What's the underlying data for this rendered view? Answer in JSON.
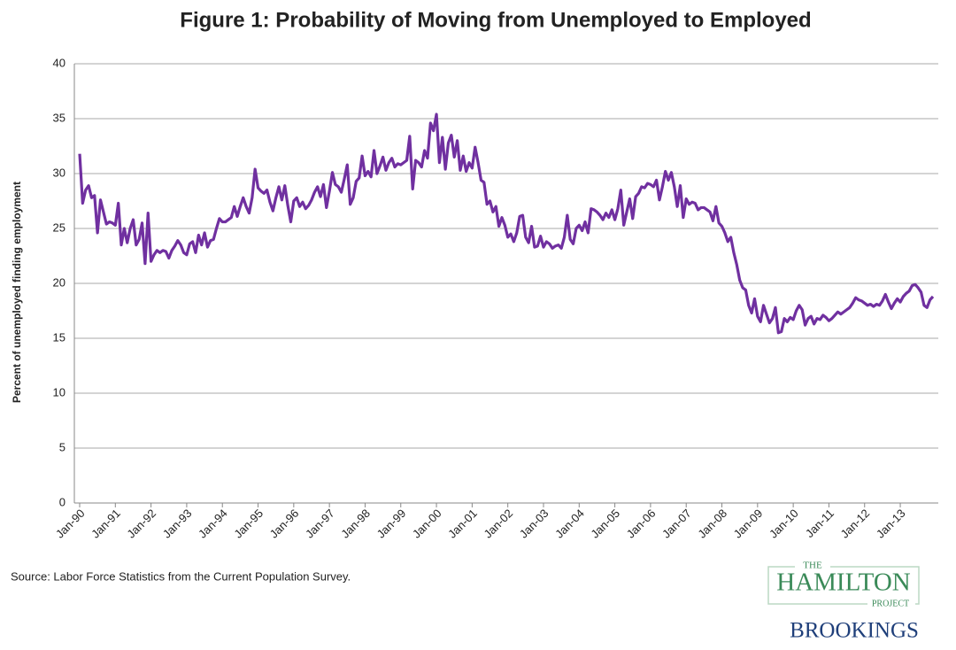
{
  "chart_data": {
    "type": "line",
    "title": "Figure 1: Probability of Moving from Unemployed to Employed",
    "y_label": "Percent of unemployed finding employment",
    "source": "Source: Labor Force Statistics from the Current Population Survey.",
    "logo": {
      "the": "THE",
      "hamilton": "HAMILTON",
      "project": "PROJECT",
      "brookings": "BROOKINGS"
    },
    "color": "#7030a0",
    "ylim": [
      0,
      40
    ],
    "yticks": [
      0,
      5,
      10,
      15,
      20,
      25,
      30,
      35,
      40
    ],
    "grid": true,
    "categories": [
      "Jan-90",
      null,
      null,
      null,
      null,
      null,
      null,
      null,
      null,
      null,
      null,
      null,
      "Jan-91",
      null,
      null,
      null,
      null,
      null,
      null,
      null,
      null,
      null,
      null,
      null,
      "Jan-92",
      null,
      null,
      null,
      null,
      null,
      null,
      null,
      null,
      null,
      null,
      null,
      "Jan-93",
      null,
      null,
      null,
      null,
      null,
      null,
      null,
      null,
      null,
      null,
      null,
      "Jan-94",
      null,
      null,
      null,
      null,
      null,
      null,
      null,
      null,
      null,
      null,
      null,
      "Jan-95",
      null,
      null,
      null,
      null,
      null,
      null,
      null,
      null,
      null,
      null,
      null,
      "Jan-96",
      null,
      null,
      null,
      null,
      null,
      null,
      null,
      null,
      null,
      null,
      null,
      "Jan-97",
      null,
      null,
      null,
      null,
      null,
      null,
      null,
      null,
      null,
      null,
      null,
      "Jan-98",
      null,
      null,
      null,
      null,
      null,
      null,
      null,
      null,
      null,
      null,
      null,
      "Jan-99",
      null,
      null,
      null,
      null,
      null,
      null,
      null,
      null,
      null,
      null,
      null,
      "Jan-00",
      null,
      null,
      null,
      null,
      null,
      null,
      null,
      null,
      null,
      null,
      null,
      "Jan-01",
      null,
      null,
      null,
      null,
      null,
      null,
      null,
      null,
      null,
      null,
      null,
      "Jan-02",
      null,
      null,
      null,
      null,
      null,
      null,
      null,
      null,
      null,
      null,
      null,
      "Jan-03",
      null,
      null,
      null,
      null,
      null,
      null,
      null,
      null,
      null,
      null,
      null,
      "Jan-04",
      null,
      null,
      null,
      null,
      null,
      null,
      null,
      null,
      null,
      null,
      null,
      "Jan-05",
      null,
      null,
      null,
      null,
      null,
      null,
      null,
      null,
      null,
      null,
      null,
      "Jan-06",
      null,
      null,
      null,
      null,
      null,
      null,
      null,
      null,
      null,
      null,
      null,
      "Jan-07",
      null,
      null,
      null,
      null,
      null,
      null,
      null,
      null,
      null,
      null,
      null,
      "Jan-08",
      null,
      null,
      null,
      null,
      null,
      null,
      null,
      null,
      null,
      null,
      null,
      "Jan-09",
      null,
      null,
      null,
      null,
      null,
      null,
      null,
      null,
      null,
      null,
      null,
      "Jan-10",
      null,
      null,
      null,
      null,
      null,
      null,
      null,
      null,
      null,
      null,
      null,
      "Jan-11",
      null,
      null,
      null,
      null,
      null,
      null,
      null,
      null,
      null,
      null,
      null,
      "Jan-12",
      null,
      null,
      null,
      null,
      null,
      null,
      null,
      null,
      null,
      null,
      null,
      "Jan-13",
      null,
      null,
      null,
      null,
      null,
      null,
      null,
      null,
      null,
      null,
      null
    ],
    "values": [
      31.8,
      27.3,
      28.5,
      28.9,
      27.8,
      28.0,
      24.6,
      27.6,
      26.5,
      25.4,
      25.6,
      25.5,
      25.3,
      27.3,
      23.5,
      25.0,
      23.7,
      25.0,
      25.8,
      23.5,
      24.0,
      25.5,
      21.8,
      26.4,
      22.0,
      22.6,
      23.0,
      22.8,
      23.0,
      22.9,
      22.3,
      23.0,
      23.4,
      23.9,
      23.5,
      22.8,
      22.6,
      23.6,
      23.8,
      22.8,
      24.4,
      23.5,
      24.6,
      23.3,
      23.9,
      24.0,
      25.0,
      25.9,
      25.6,
      25.6,
      25.8,
      26.0,
      27.0,
      26.1,
      27.0,
      27.8,
      27.0,
      26.4,
      27.8,
      30.4,
      28.7,
      28.4,
      28.2,
      28.5,
      27.4,
      26.6,
      27.8,
      28.8,
      27.6,
      28.9,
      27.1,
      25.6,
      27.5,
      27.8,
      27.0,
      27.4,
      26.8,
      27.1,
      27.6,
      28.3,
      28.8,
      27.9,
      29.0,
      26.9,
      28.4,
      30.1,
      29.0,
      28.8,
      28.3,
      29.5,
      30.8,
      27.2,
      27.8,
      29.3,
      29.6,
      31.6,
      29.8,
      30.2,
      29.7,
      32.1,
      30.0,
      30.7,
      31.5,
      30.3,
      31.0,
      31.4,
      30.6,
      30.9,
      30.8,
      31.0,
      31.2,
      33.4,
      28.6,
      31.2,
      31.0,
      30.6,
      32.1,
      31.4,
      34.6,
      33.9,
      35.4,
      31.0,
      33.3,
      30.4,
      32.8,
      33.5,
      31.5,
      33.0,
      30.3,
      31.6,
      30.2,
      31.0,
      30.5,
      32.4,
      31.0,
      29.4,
      29.2,
      27.2,
      27.5,
      26.5,
      27.0,
      25.2,
      26.0,
      25.3,
      24.2,
      24.5,
      23.8,
      24.6,
      26.1,
      26.2,
      24.2,
      23.7,
      25.2,
      23.3,
      23.4,
      24.3,
      23.3,
      23.8,
      23.6,
      23.2,
      23.4,
      23.5,
      23.2,
      24.2,
      26.2,
      24.0,
      23.6,
      25.0,
      25.3,
      24.8,
      25.6,
      24.6,
      26.8,
      26.7,
      26.5,
      26.2,
      25.8,
      26.4,
      26.0,
      26.7,
      25.8,
      26.8,
      28.5,
      25.3,
      26.5,
      27.7,
      25.9,
      27.9,
      28.2,
      28.8,
      28.7,
      29.1,
      29.0,
      28.8,
      29.4,
      27.6,
      28.8,
      30.2,
      29.4,
      30.1,
      28.8,
      27.0,
      28.9,
      26.0,
      27.7,
      27.2,
      27.4,
      27.3,
      26.7,
      26.9,
      26.9,
      26.7,
      26.5,
      25.7,
      27.0,
      25.5,
      25.2,
      24.6,
      23.8,
      24.2,
      22.8,
      21.7,
      20.3,
      19.6,
      19.4,
      18.0,
      17.3,
      18.6,
      17.0,
      16.5,
      18.0,
      17.2,
      16.4,
      16.8,
      17.8,
      15.5,
      15.6,
      16.8,
      16.5,
      16.9,
      16.7,
      17.5,
      18.0,
      17.6,
      16.2,
      16.8,
      17.0,
      16.3,
      16.8,
      16.7,
      17.1,
      16.9,
      16.6,
      16.8,
      17.1,
      17.4,
      17.2,
      17.4,
      17.6,
      17.8,
      18.2,
      18.7,
      18.5,
      18.4,
      18.2,
      18.0,
      18.1,
      17.9,
      18.1,
      18.0,
      18.4,
      19.0,
      18.3,
      17.7,
      18.2,
      18.6,
      18.3,
      18.8,
      19.1,
      19.3,
      19.8,
      19.9,
      19.6,
      19.2,
      18.0,
      17.8,
      18.5,
      18.8
    ]
  }
}
